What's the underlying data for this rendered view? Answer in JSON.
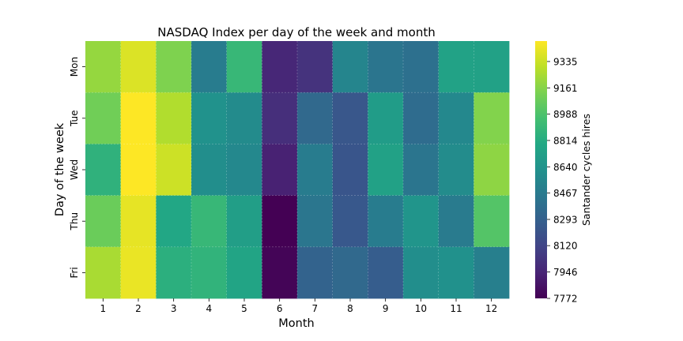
{
  "chart_data": {
    "type": "heatmap",
    "title": "NASDAQ Index per day of the week and month",
    "xlabel": "Month",
    "ylabel": "Day of the week",
    "x_categories": [
      "1",
      "2",
      "3",
      "4",
      "5",
      "6",
      "7",
      "8",
      "9",
      "10",
      "11",
      "12"
    ],
    "y_categories": [
      "Mon",
      "Tue",
      "Wed",
      "Thu",
      "Fri"
    ],
    "values": [
      [
        9200,
        9380,
        9140,
        8480,
        8900,
        7960,
        8020,
        8540,
        8430,
        8400,
        8750,
        8740
      ],
      [
        9100,
        9470,
        9270,
        8630,
        8580,
        8000,
        8350,
        8230,
        8700,
        8370,
        8560,
        9150
      ],
      [
        8860,
        9470,
        9340,
        8600,
        8560,
        7930,
        8480,
        8220,
        8740,
        8430,
        8590,
        9180
      ],
      [
        9080,
        9410,
        8780,
        8900,
        8720,
        7772,
        8440,
        8240,
        8480,
        8650,
        8470,
        9010
      ],
      [
        9250,
        9420,
        8840,
        8870,
        8760,
        7790,
        8310,
        8350,
        8270,
        8600,
        8620,
        8500
      ]
    ],
    "colorbar": {
      "label": "Santander cycles hires",
      "ticks": [
        "7772",
        "7946",
        "8120",
        "8293",
        "8467",
        "8640",
        "8814",
        "8988",
        "9161",
        "9335"
      ],
      "min": 7772,
      "max": 9470,
      "colormap": "viridis"
    }
  }
}
